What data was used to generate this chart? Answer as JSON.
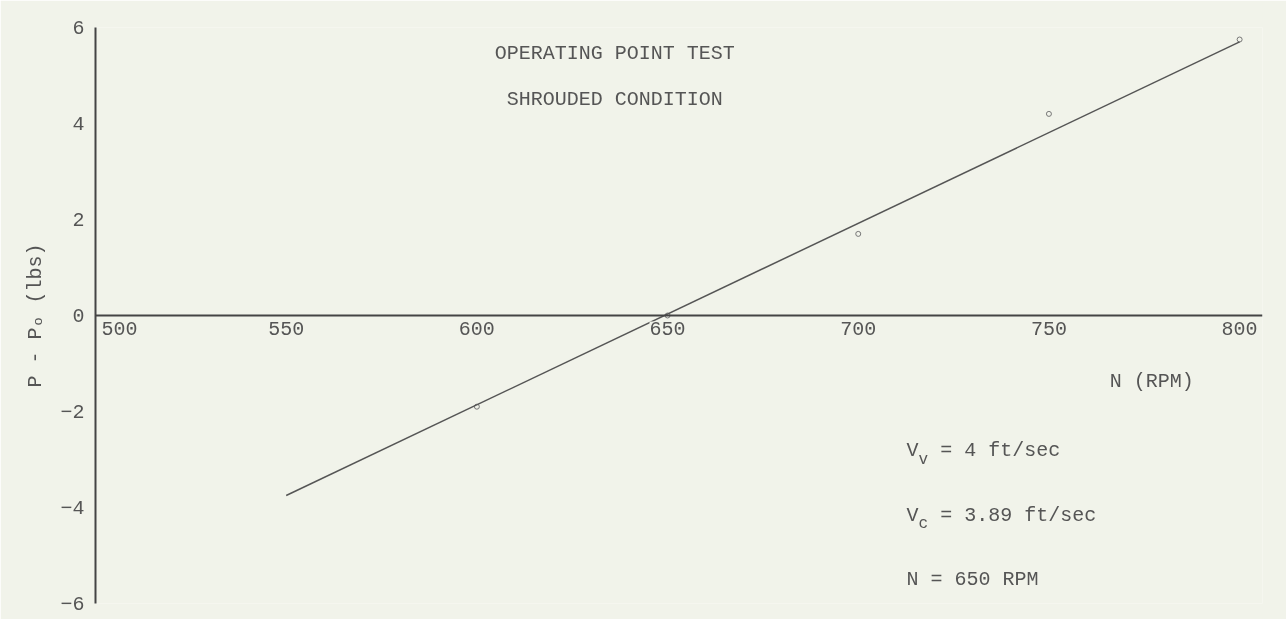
{
  "chart_data": {
    "type": "scatter",
    "title": "OPERATING POINT TEST",
    "subtitle": "SHROUDED CONDITION",
    "xlabel": "N (RPM)",
    "ylabel": "P - Pₒ (lbs)",
    "annotations": [
      "V$_{v}$ = 4 ft/sec",
      "V$_{c}$ = 3.89 ft/sec",
      "N = 650 RPM"
    ],
    "series": [
      {
        "color": "#777777",
        "x": [
          600,
          650,
          700,
          750,
          800
        ],
        "values": [
          -1.9,
          0,
          1.7,
          4.2,
          5.75
        ],
        "marker": "circle"
      },
      {
        "type": "line",
        "color": "#555555",
        "x": [
          550,
          800
        ],
        "values": [
          -3.75,
          5.7
        ],
        "marker": "none"
      }
    ],
    "xlim": [
      500,
      806
    ],
    "ylim": [
      -6,
      6
    ],
    "xticks": [
      500,
      550,
      600,
      650,
      700,
      750,
      800
    ],
    "yticks": [
      -6,
      -4,
      -2,
      0,
      2,
      4,
      6
    ],
    "grid": false
  }
}
